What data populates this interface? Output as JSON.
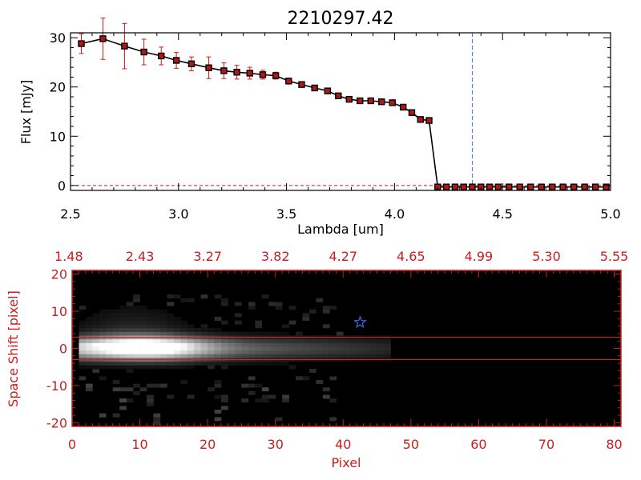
{
  "colors": {
    "series": "#000000",
    "error_bar": "#d01818",
    "marker_fill": "#b01818",
    "vline": "#3a78d8",
    "spectrum_axis": "#c81e1e",
    "extraction_line": "#d02020",
    "star": "#3a6ee8",
    "image_bg": "#000000"
  },
  "chart_data": [
    {
      "type": "scatter",
      "title": "2210297.42",
      "xlabel": "Lambda [um]",
      "ylabel": "Flux [mJy]",
      "xlim": [
        2.5,
        5.0
      ],
      "ylim": [
        -1,
        31
      ],
      "x_ticks": [
        2.5,
        3.0,
        3.5,
        4.0,
        4.5,
        5.0
      ],
      "x_tick_labels": [
        "2.5",
        "3.0",
        "3.5",
        "4.0",
        "4.5",
        "5.0"
      ],
      "y_ticks": [
        0,
        10,
        20,
        30
      ],
      "y_tick_labels": [
        "0",
        "10",
        "20",
        "30"
      ],
      "grid": false,
      "connected": true,
      "marker": "square",
      "vertical_line_x": 4.36,
      "series": [
        {
          "x": [
            2.55,
            2.65,
            2.75,
            2.84,
            2.92,
            2.99,
            3.06,
            3.14,
            3.21,
            3.27,
            3.33,
            3.39,
            3.45,
            3.51,
            3.57,
            3.63,
            3.69,
            3.74,
            3.79,
            3.84,
            3.89,
            3.94,
            3.99,
            4.04,
            4.08,
            4.12,
            4.16,
            4.2,
            4.24,
            4.28,
            4.32,
            4.36,
            4.4,
            4.44,
            4.48,
            4.53,
            4.58,
            4.63,
            4.68,
            4.73,
            4.78,
            4.83,
            4.88,
            4.93,
            4.98
          ],
          "y": [
            28.8,
            29.8,
            28.3,
            27.1,
            26.3,
            25.4,
            24.7,
            23.9,
            23.3,
            23.0,
            22.8,
            22.5,
            22.3,
            21.2,
            20.5,
            19.8,
            19.2,
            18.2,
            17.5,
            17.2,
            17.2,
            17.0,
            16.8,
            15.9,
            14.8,
            13.4,
            13.2,
            -0.3,
            -0.3,
            -0.3,
            -0.3,
            -0.3,
            -0.3,
            -0.3,
            -0.3,
            -0.3,
            -0.3,
            -0.3,
            -0.3,
            -0.3,
            -0.3,
            -0.3,
            -0.3,
            -0.3,
            -0.3
          ],
          "yerr": [
            2.0,
            4.2,
            4.6,
            2.6,
            1.8,
            1.6,
            1.4,
            2.2,
            1.6,
            1.4,
            1.2,
            0.9,
            0.7,
            0.6,
            0.5,
            0.4,
            0.4,
            0.4,
            0.3,
            0.3,
            0.3,
            0.3,
            0.3,
            0.3,
            0.4,
            0.4,
            0.5,
            0.2,
            0.2,
            0.2,
            0.2,
            0.2,
            0.2,
            0.2,
            0.2,
            0.2,
            0.2,
            0.2,
            0.2,
            0.2,
            0.2,
            0.2,
            0.2,
            0.2,
            0.2
          ]
        }
      ]
    },
    {
      "type": "heatmap",
      "xlabel": "Pixel",
      "ylabel": "Space Shift [pixel]",
      "xlim": [
        0,
        81
      ],
      "ylim": [
        -21,
        21
      ],
      "x_ticks": [
        0,
        10,
        20,
        30,
        40,
        50,
        60,
        70,
        80
      ],
      "x_tick_labels": [
        "0",
        "10",
        "20",
        "30",
        "40",
        "50",
        "60",
        "70",
        "80"
      ],
      "y_ticks": [
        -20,
        -10,
        0,
        10,
        20
      ],
      "y_tick_labels": [
        "-20",
        "-10",
        "0",
        "10",
        "20"
      ],
      "top_axis_positions": [
        0,
        10,
        20,
        30,
        40,
        50,
        60,
        70,
        80
      ],
      "top_axis_labels": [
        "1.48",
        "2.43",
        "3.27",
        "3.82",
        "4.27",
        "4.65",
        "4.99",
        "5.30",
        "5.55"
      ],
      "extraction_lines_y": [
        3,
        -3
      ],
      "star_marker": [
        42.5,
        7
      ],
      "trace": {
        "x_start": 1,
        "x_end": 47,
        "peak_x": 11,
        "peak_y": 0,
        "core_width": 3,
        "halo_upper_extent": 12
      }
    }
  ]
}
